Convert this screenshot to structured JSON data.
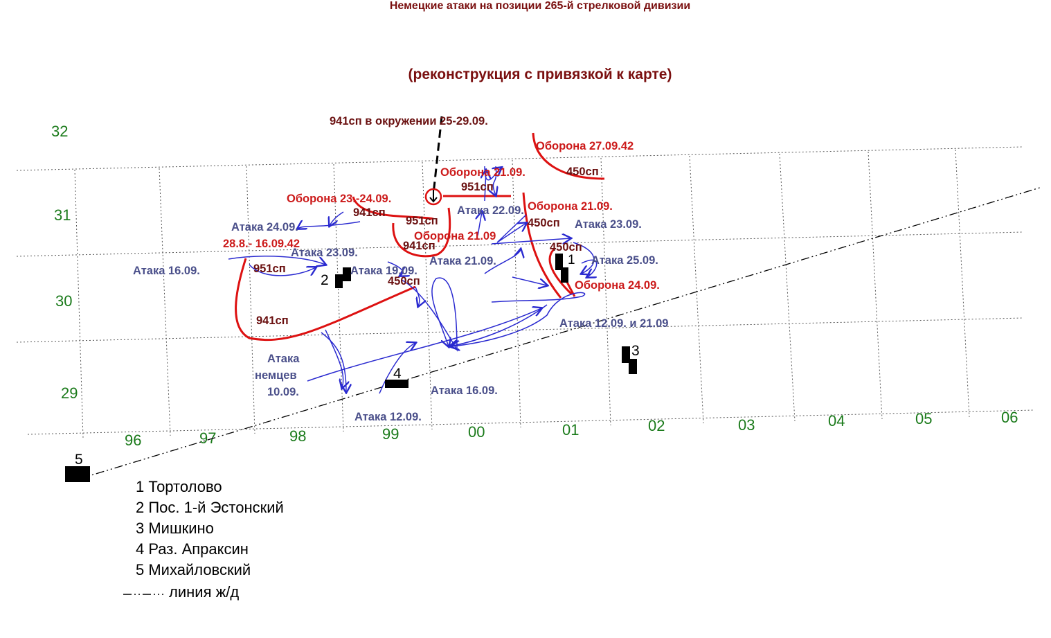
{
  "title": "Немецкие атаки на позиции 265-й стрелковой дивизии",
  "subtitle": "(реконструкция с привязкой к карте)",
  "grid": {
    "rows": [
      "32",
      "31",
      "30",
      "29"
    ],
    "cols": [
      "96",
      "97",
      "98",
      "99",
      "00",
      "01",
      "02",
      "03",
      "04",
      "05",
      "06"
    ]
  },
  "labels": {
    "encircled": "941сп в окружении 25-29.09.",
    "def_27_09": "Оборона 27.09.42",
    "def_21_09_a": "Оборона 21.09.",
    "def_23_24": "Оборона 23.-24.09.",
    "def_21_09_b": "Оборона 21.09.",
    "def_21_09_c": "Оборона 21.09",
    "def_24_09": "Оборона 24.09.",
    "period": "28.8.- 16.09.42",
    "att_22": "Атака 22.09.",
    "att_24": "Атака 24.09.",
    "att_23_a": "Атака 23.09.",
    "att_23_b": "Атака 23.09.",
    "att_19": "Атака 19.09.",
    "att_21": "Атака 21.09.",
    "att_25": "Атака 25.09.",
    "att_16_a": "Атака 16.09.",
    "att_16_b": "Атака 16.09.",
    "att_12_21": "Атака 12.09. и 21.09",
    "att_12": "Атака 12.09.",
    "att_germ_1": "Атака",
    "att_germ_2": "немцев",
    "att_germ_3": "10.09.",
    "u450_a": "450сп",
    "u450_b": "450сп",
    "u450_c": "450сп",
    "u450_d": "450сп",
    "u951_a": "951сп",
    "u951_b": "951сп",
    "u951_c": "951сп",
    "u941_a": "941сп",
    "u941_b": "941сп",
    "u941_c": "941сп"
  },
  "points": {
    "p1": "1",
    "p2": "2",
    "p3": "3",
    "p4": "4",
    "p5": "5"
  },
  "legend": [
    "1 Тортолово",
    "2 Пос. 1-й Эстонский",
    "3 Мишкино",
    "4 Раз. Апраксин",
    "5 Михайловский",
    "линия ж/д"
  ],
  "colors": {
    "defense_line": "#dd1111",
    "attack_arrow": "#2a2ad0",
    "attack_text": "#4a4f8a",
    "unit_text": "#6a1010",
    "grid_numbers": "#1a7a1a",
    "title": "#7a0f0f"
  }
}
